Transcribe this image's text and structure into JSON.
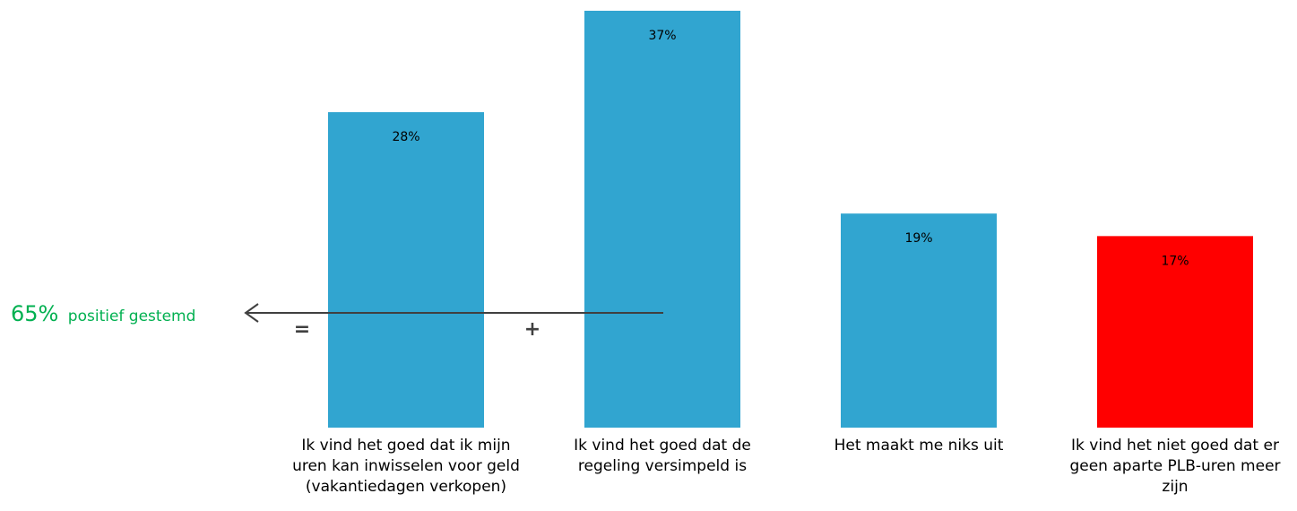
{
  "chart_data": {
    "type": "bar",
    "categories": [
      "Ik vind het goed dat ik mijn uren kan inwisselen voor geld (vakantiedagen verkopen)",
      "Ik vind het goed dat de regeling versimpeld is",
      "Het maakt me niks uit",
      "Ik vind het niet goed dat er geen aparte PLB-uren meer zijn"
    ],
    "category_lines": [
      [
        "Ik vind het goed dat ik mijn",
        "uren kan inwisselen voor geld",
        "(vakantiedagen verkopen)"
      ],
      [
        "Ik vind het goed dat de",
        "regeling versimpeld is"
      ],
      [
        "Het maakt me niks uit"
      ],
      [
        "Ik vind het niet goed dat er",
        "geen aparte PLB-uren meer",
        "zijn"
      ]
    ],
    "values": [
      28,
      37,
      19,
      17
    ],
    "value_labels": [
      "28%",
      "37%",
      "19%",
      "17%"
    ],
    "bar_colors": [
      "#31A5D0",
      "#31A5D0",
      "#31A5D0",
      "#FF0000"
    ],
    "ylim": [
      0,
      37
    ],
    "grid": false,
    "legend": "none",
    "title": "",
    "xlabel": "",
    "ylabel": ""
  },
  "annotation": {
    "value": "65%",
    "text": "positief gestemd",
    "color": "#00B050",
    "equals_sign": "=",
    "plus_sign": "+",
    "arrow_color": "#404040"
  }
}
